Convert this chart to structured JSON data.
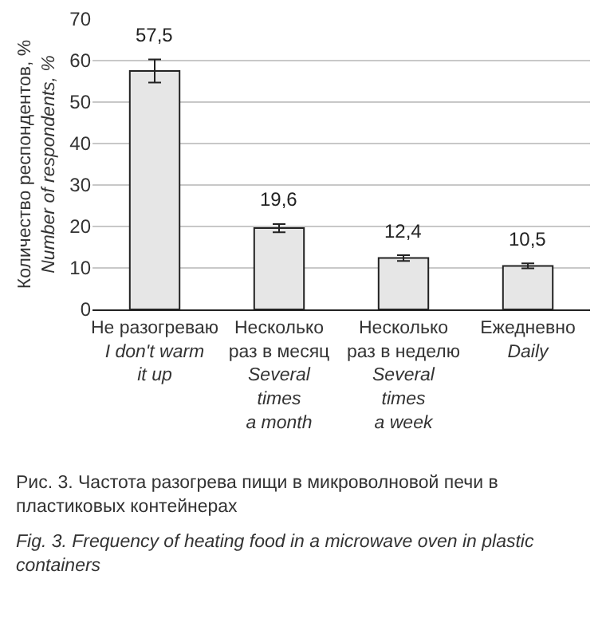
{
  "chart_data": {
    "type": "bar",
    "ylabel": "Количество респондентов, %\nNumber of respondents, %",
    "categories": [
      "Не разогреваю\nI don't warm\nit up",
      "Несколько\nраз в месяц\nSeveral\ntimes\na month",
      "Несколько\nраз в неделю\nSeveral\ntimes\na week",
      "Ежедневно\nDaily"
    ],
    "values": [
      57.5,
      19.6,
      12.4,
      10.5
    ],
    "errors": [
      2.8,
      1.0,
      0.7,
      0.6
    ],
    "value_labels": [
      "57,5",
      "19,6",
      "12,4",
      "10,5"
    ],
    "color": "#e6e6e6",
    "ylim": [
      0,
      70
    ],
    "yticks": [
      0,
      10,
      20,
      30,
      40,
      50,
      60,
      70
    ],
    "grid": "y",
    "annotations": [
      "Рис. 3. Частота разогрева пищи в микроволновой печи в пластиковых контейнерах",
      "Fig. 3. Frequency of heating food in a microwave oven in plastic containers"
    ]
  }
}
